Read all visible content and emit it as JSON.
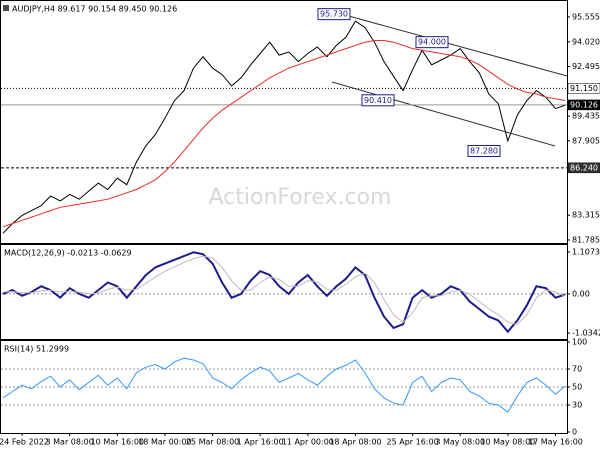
{
  "header": {
    "watermark": "ActionForex.com"
  },
  "chart_data": [
    {
      "type": "line",
      "title": "AUDJPY,H4 89.617 90.154 89.450 90.126",
      "ylim": [
        81.66,
        96.48
      ],
      "yticks": [
        95.555,
        {
          "value": 94.02,
          "label": "94.020"
        },
        92.495,
        89.435,
        87.905,
        83.315,
        81.785
      ],
      "levels": [
        {
          "value": 91.15,
          "label": "91.150",
          "style": "dotted"
        },
        {
          "value": 90.126,
          "label": "90.126",
          "style": "solid"
        },
        {
          "value": 86.24,
          "label": "86.240",
          "style": "dashed"
        }
      ],
      "annotations": [
        {
          "value": 95.73,
          "label": "95.730"
        },
        {
          "value": 94.0,
          "label": "94.000"
        },
        {
          "value": 90.41,
          "label": "90.410"
        },
        {
          "value": 87.28,
          "label": "87.280"
        }
      ],
      "series": [
        {
          "color": "#000000",
          "values": [
            82.2,
            82.8,
            83.3,
            83.6,
            83.9,
            84.5,
            84.2,
            84.6,
            84.3,
            84.8,
            85.3,
            84.9,
            85.6,
            85.2,
            86.6,
            87.6,
            88.3,
            89.3,
            90.4,
            91.0,
            92.4,
            93.1,
            92.4,
            92.0,
            91.3,
            91.8,
            92.6,
            93.3,
            94.0,
            93.2,
            93.4,
            92.8,
            93.3,
            93.7,
            93.1,
            93.8,
            94.3,
            95.3,
            94.9,
            94.0,
            92.8,
            91.9,
            91.0,
            92.3,
            93.5,
            92.6,
            92.9,
            93.2,
            93.6,
            92.8,
            92.1,
            90.8,
            90.2,
            87.9,
            89.5,
            90.4,
            91.0,
            90.6,
            89.9,
            90.1
          ]
        },
        {
          "color": "#e8302a",
          "values": [
            82.6,
            82.8,
            83.0,
            83.2,
            83.4,
            83.6,
            83.8,
            83.9,
            84.0,
            84.1,
            84.2,
            84.3,
            84.5,
            84.7,
            84.9,
            85.2,
            85.5,
            86.0,
            86.6,
            87.3,
            88.0,
            88.7,
            89.3,
            89.8,
            90.2,
            90.6,
            91.0,
            91.4,
            91.8,
            92.1,
            92.4,
            92.6,
            92.8,
            93.0,
            93.2,
            93.4,
            93.6,
            93.8,
            94.0,
            94.1,
            94.1,
            94.0,
            93.8,
            93.6,
            93.5,
            93.4,
            93.3,
            93.2,
            93.1,
            92.9,
            92.6,
            92.2,
            91.8,
            91.4,
            91.1,
            90.9,
            90.8,
            90.6,
            90.5,
            90.4
          ]
        }
      ]
    },
    {
      "type": "line",
      "title": "MACD(12,26,9) -0.0213 -0.0629",
      "ylim": [
        -1.166,
        1.266
      ],
      "yticks": [
        1.1073,
        {
          "value": 0,
          "label": "0.00"
        },
        -1.0342
      ],
      "series": [
        {
          "color": "#1c1c8c",
          "values": [
            0.0,
            0.1,
            -0.05,
            0.05,
            0.2,
            0.1,
            -0.1,
            0.15,
            0.0,
            -0.1,
            0.1,
            0.3,
            0.2,
            -0.1,
            0.2,
            0.5,
            0.7,
            0.8,
            0.9,
            1.0,
            1.1,
            1.05,
            0.8,
            0.3,
            -0.1,
            0.0,
            0.35,
            0.6,
            0.5,
            0.2,
            0.0,
            0.3,
            0.5,
            0.2,
            -0.05,
            0.2,
            0.4,
            0.7,
            0.5,
            -0.1,
            -0.6,
            -0.9,
            -0.8,
            -0.1,
            0.1,
            -0.1,
            0.0,
            0.2,
            0.1,
            -0.2,
            -0.4,
            -0.6,
            -0.7,
            -1.0,
            -0.7,
            -0.3,
            0.2,
            0.15,
            -0.1,
            -0.02
          ]
        },
        {
          "color": "#c8b8b8",
          "values": [
            0.05,
            0.06,
            0.03,
            0.03,
            0.08,
            0.1,
            0.05,
            0.06,
            0.05,
            0.0,
            0.02,
            0.12,
            0.18,
            0.1,
            0.12,
            0.28,
            0.45,
            0.6,
            0.72,
            0.83,
            0.93,
            1.0,
            0.95,
            0.7,
            0.35,
            0.1,
            0.1,
            0.3,
            0.45,
            0.38,
            0.2,
            0.2,
            0.35,
            0.32,
            0.12,
            0.1,
            0.25,
            0.45,
            0.55,
            0.3,
            -0.15,
            -0.55,
            -0.75,
            -0.5,
            -0.1,
            -0.05,
            -0.05,
            0.05,
            0.1,
            0.0,
            -0.2,
            -0.4,
            -0.55,
            -0.75,
            -0.8,
            -0.55,
            -0.1,
            0.1,
            0.05,
            -0.06
          ]
        }
      ]
    },
    {
      "type": "line",
      "title": "RSI(14) 51.2999",
      "ylim": [
        0,
        100
      ],
      "yticks": [
        100,
        70,
        50,
        30,
        0
      ],
      "categories": [
        null,
        null,
        "24 Feb 2022",
        null,
        null,
        null,
        null,
        "3 Mar 08:00",
        null,
        null,
        null,
        null,
        "10 Mar 16:00",
        null,
        null,
        null,
        null,
        "18 Mar 00:00",
        null,
        null,
        null,
        null,
        "25 Mar 08:00",
        null,
        null,
        null,
        null,
        "1 Apr 16:00",
        null,
        null,
        null,
        null,
        "11 Apr 00:00",
        null,
        null,
        null,
        null,
        "18 Apr 08:00",
        null,
        null,
        null,
        null,
        null,
        "25 Apr 16:00",
        null,
        null,
        null,
        null,
        "3 May 08:00",
        null,
        null,
        null,
        null,
        "10 May 08:00",
        null,
        null,
        null,
        null,
        "17 May 16:00",
        null
      ],
      "series": [
        {
          "color": "#3399ff",
          "values": [
            38,
            45,
            52,
            48,
            56,
            62,
            50,
            58,
            47,
            55,
            63,
            52,
            60,
            48,
            66,
            72,
            75,
            70,
            78,
            82,
            80,
            76,
            60,
            55,
            48,
            58,
            66,
            72,
            68,
            55,
            60,
            65,
            58,
            52,
            62,
            70,
            74,
            80,
            66,
            48,
            38,
            32,
            30,
            55,
            62,
            45,
            55,
            60,
            58,
            45,
            40,
            32,
            30,
            22,
            40,
            55,
            60,
            52,
            42,
            51
          ]
        }
      ]
    }
  ]
}
